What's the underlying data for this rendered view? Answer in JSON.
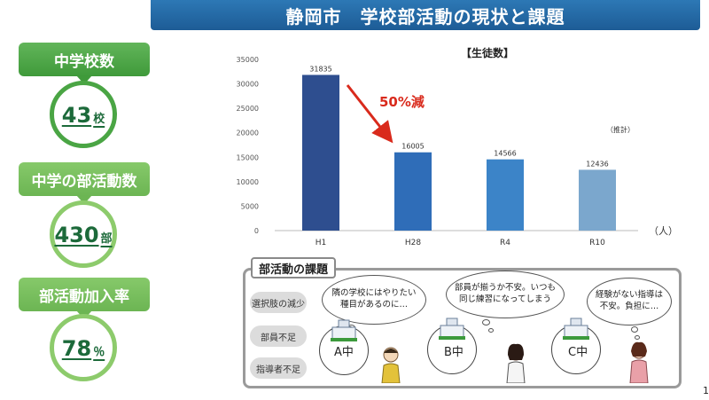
{
  "title": "静岡市　学校部活動の現状と課題",
  "stats": [
    {
      "label": "中学校数",
      "value": "43",
      "unit": "校"
    },
    {
      "label": "中学の部活動数",
      "value": "430",
      "unit": "部"
    },
    {
      "label": "部活動加入率",
      "value": "78",
      "unit": "％"
    }
  ],
  "chart_data": {
    "type": "bar",
    "title": "【生徒数】",
    "categories": [
      "H1",
      "H28",
      "R4",
      "R10"
    ],
    "values": [
      31835,
      16005,
      14566,
      12436
    ],
    "value_labels": [
      "31835",
      "16005",
      "14566",
      "12436"
    ],
    "bar_colors": [
      "#2e4e8f",
      "#2f6db8",
      "#3c84c8",
      "#7ba7cd"
    ],
    "ylim": [
      0,
      35000
    ],
    "yticks": [
      0,
      5000,
      10000,
      15000,
      20000,
      25000,
      30000,
      35000
    ],
    "unit_label": "（人）",
    "estimate_label": "（推計）",
    "annotation": "50%減",
    "grid": false
  },
  "issues": {
    "heading": "部活動の課題",
    "items": [
      "選択肢の減少",
      "部員不足",
      "指導者不足"
    ],
    "schools": [
      "A中",
      "B中",
      "C中"
    ],
    "bubbles": [
      [
        "隣の学校にはやりたい",
        "種目があるのに…"
      ],
      [
        "部員が揃うか不安。いつも",
        "同じ練習になってしまう"
      ],
      [
        "経験がない指導は",
        "不安。負担に…"
      ]
    ]
  },
  "page_number": "1"
}
